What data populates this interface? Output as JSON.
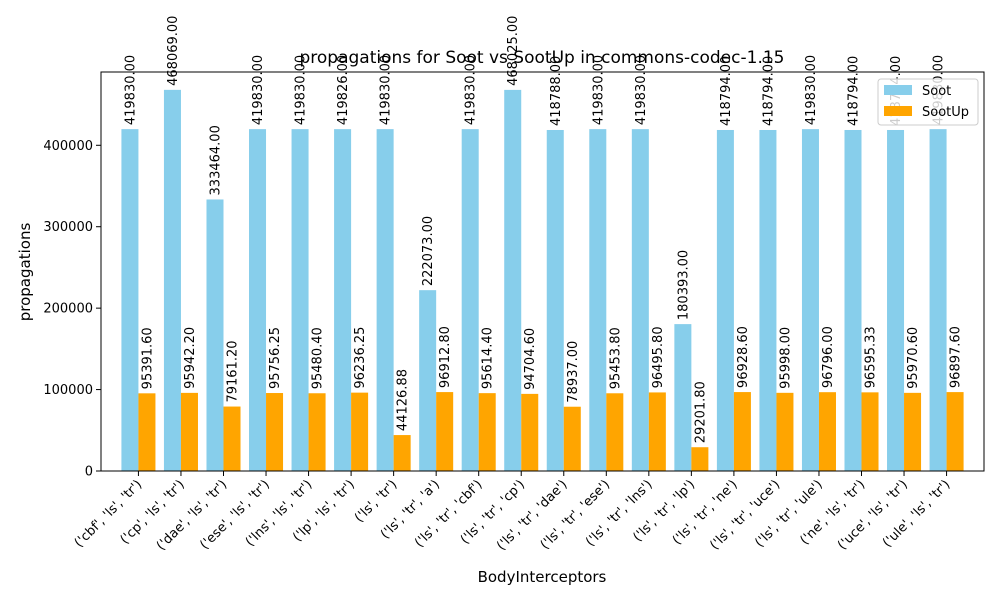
{
  "chart_data": {
    "type": "bar",
    "title": "propagations for Soot vs SootUp in commons-codec-1.15",
    "xlabel": "BodyInterceptors",
    "ylabel": "propagations",
    "ylim": [
      0,
      490000
    ],
    "yticks": [
      0,
      100000,
      200000,
      300000,
      400000
    ],
    "ytick_labels": [
      "0",
      "100000",
      "200000",
      "300000",
      "400000"
    ],
    "grid": false,
    "legend_position": "top-right",
    "categories": [
      "('cbf', 'ls', 'tr')",
      "('cp', 'ls', 'tr')",
      "('dae', 'ls', 'tr')",
      "('ese', 'ls', 'tr')",
      "('lns', 'ls', 'tr')",
      "('lp', 'ls', 'tr')",
      "('ls', 'tr')",
      "('ls', 'tr', 'a')",
      "('ls', 'tr', 'cbf')",
      "('ls', 'tr', 'cp')",
      "('ls', 'tr', 'dae')",
      "('ls', 'tr', 'ese')",
      "('ls', 'tr', 'lns')",
      "('ls', 'tr', 'lp')",
      "('ls', 'tr', 'ne')",
      "('ls', 'tr', 'uce')",
      "('ls', 'tr', 'ule')",
      "('ne', 'ls', 'tr')",
      "('uce', 'ls', 'tr')",
      "('ule', 'ls', 'tr')"
    ],
    "series": [
      {
        "name": "Soot",
        "color": "#87ceeb",
        "values": [
          419830.0,
          468069.0,
          333464.0,
          419830.0,
          419830.0,
          419826.0,
          419830.0,
          222073.0,
          419830.0,
          468025.0,
          418788.0,
          419830.0,
          419830.0,
          180393.0,
          418794.0,
          418794.0,
          419830.0,
          418794.0,
          418794.0,
          419830.0
        ],
        "labels": [
          "419830.00",
          "468069.00",
          "333464.00",
          "419830.00",
          "419830.00",
          "419826.00",
          "419830.00",
          "222073.00",
          "419830.00",
          "468025.00",
          "418788.00",
          "419830.00",
          "419830.00",
          "180393.00",
          "418794.00",
          "418794.00",
          "419830.00",
          "418794.00",
          "418794.00",
          "419830.00"
        ]
      },
      {
        "name": "SootUp",
        "color": "#ffa500",
        "values": [
          95391.6,
          95942.2,
          79161.2,
          95756.25,
          95480.4,
          96236.25,
          44126.88,
          96912.8,
          95614.4,
          94704.6,
          78937.0,
          95453.8,
          96495.8,
          29201.8,
          96928.6,
          95998.0,
          96796.0,
          96595.33,
          95970.6,
          96897.6
        ],
        "labels": [
          "95391.60",
          "95942.20",
          "79161.20",
          "95756.25",
          "95480.40",
          "96236.25",
          "44126.88",
          "96912.80",
          "95614.40",
          "94704.60",
          "78937.00",
          "95453.80",
          "96495.80",
          "29201.80",
          "96928.60",
          "95998.00",
          "96796.00",
          "96595.33",
          "95970.60",
          "96897.60"
        ]
      }
    ]
  }
}
